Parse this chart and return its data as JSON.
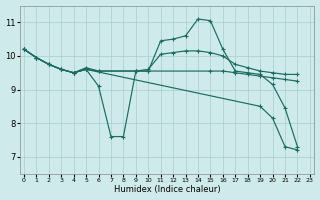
{
  "xlabel": "Humidex (Indice chaleur)",
  "bg_color": "#ceeaea",
  "grid_color": "#a8cccc",
  "line_color": "#1a6b60",
  "xlim_min": -0.3,
  "xlim_max": 23.3,
  "ylim_min": 6.5,
  "ylim_max": 11.5,
  "yticks": [
    7,
    8,
    9,
    10,
    11
  ],
  "xticks": [
    0,
    1,
    2,
    3,
    4,
    5,
    6,
    7,
    8,
    9,
    10,
    11,
    12,
    13,
    14,
    15,
    16,
    17,
    18,
    19,
    20,
    21,
    22,
    23
  ],
  "series": [
    {
      "x": [
        0,
        1,
        2,
        3,
        4,
        5,
        6,
        7,
        8,
        9,
        10,
        11,
        12,
        13,
        14,
        15,
        16,
        17,
        18,
        19,
        20,
        21,
        22
      ],
      "y": [
        10.2,
        9.95,
        9.75,
        9.6,
        9.5,
        9.6,
        9.1,
        7.6,
        7.6,
        9.55,
        9.55,
        10.45,
        10.5,
        10.6,
        11.1,
        11.05,
        10.2,
        9.55,
        9.5,
        9.45,
        9.15,
        8.45,
        7.3
      ]
    },
    {
      "x": [
        0,
        1,
        2,
        3,
        4,
        5,
        6,
        9,
        10,
        11,
        12,
        13,
        14,
        15,
        16,
        17,
        18,
        19,
        20,
        21,
        22
      ],
      "y": [
        10.2,
        9.95,
        9.75,
        9.6,
        9.5,
        9.65,
        9.55,
        9.55,
        9.6,
        10.05,
        10.1,
        10.15,
        10.15,
        10.1,
        10.0,
        9.75,
        9.65,
        9.55,
        9.5,
        9.45,
        9.45
      ]
    },
    {
      "x": [
        0,
        1,
        2,
        3,
        4,
        5,
        6,
        9,
        10,
        15,
        16,
        17,
        18,
        19,
        20,
        21,
        22
      ],
      "y": [
        10.2,
        9.95,
        9.75,
        9.6,
        9.5,
        9.6,
        9.55,
        9.55,
        9.55,
        9.55,
        9.55,
        9.5,
        9.45,
        9.4,
        9.35,
        9.3,
        9.25
      ]
    },
    {
      "x": [
        0,
        1,
        2,
        3,
        4,
        5,
        19,
        20,
        21,
        22
      ],
      "y": [
        10.2,
        9.95,
        9.75,
        9.6,
        9.5,
        9.6,
        8.5,
        8.15,
        7.3,
        7.2
      ]
    }
  ]
}
